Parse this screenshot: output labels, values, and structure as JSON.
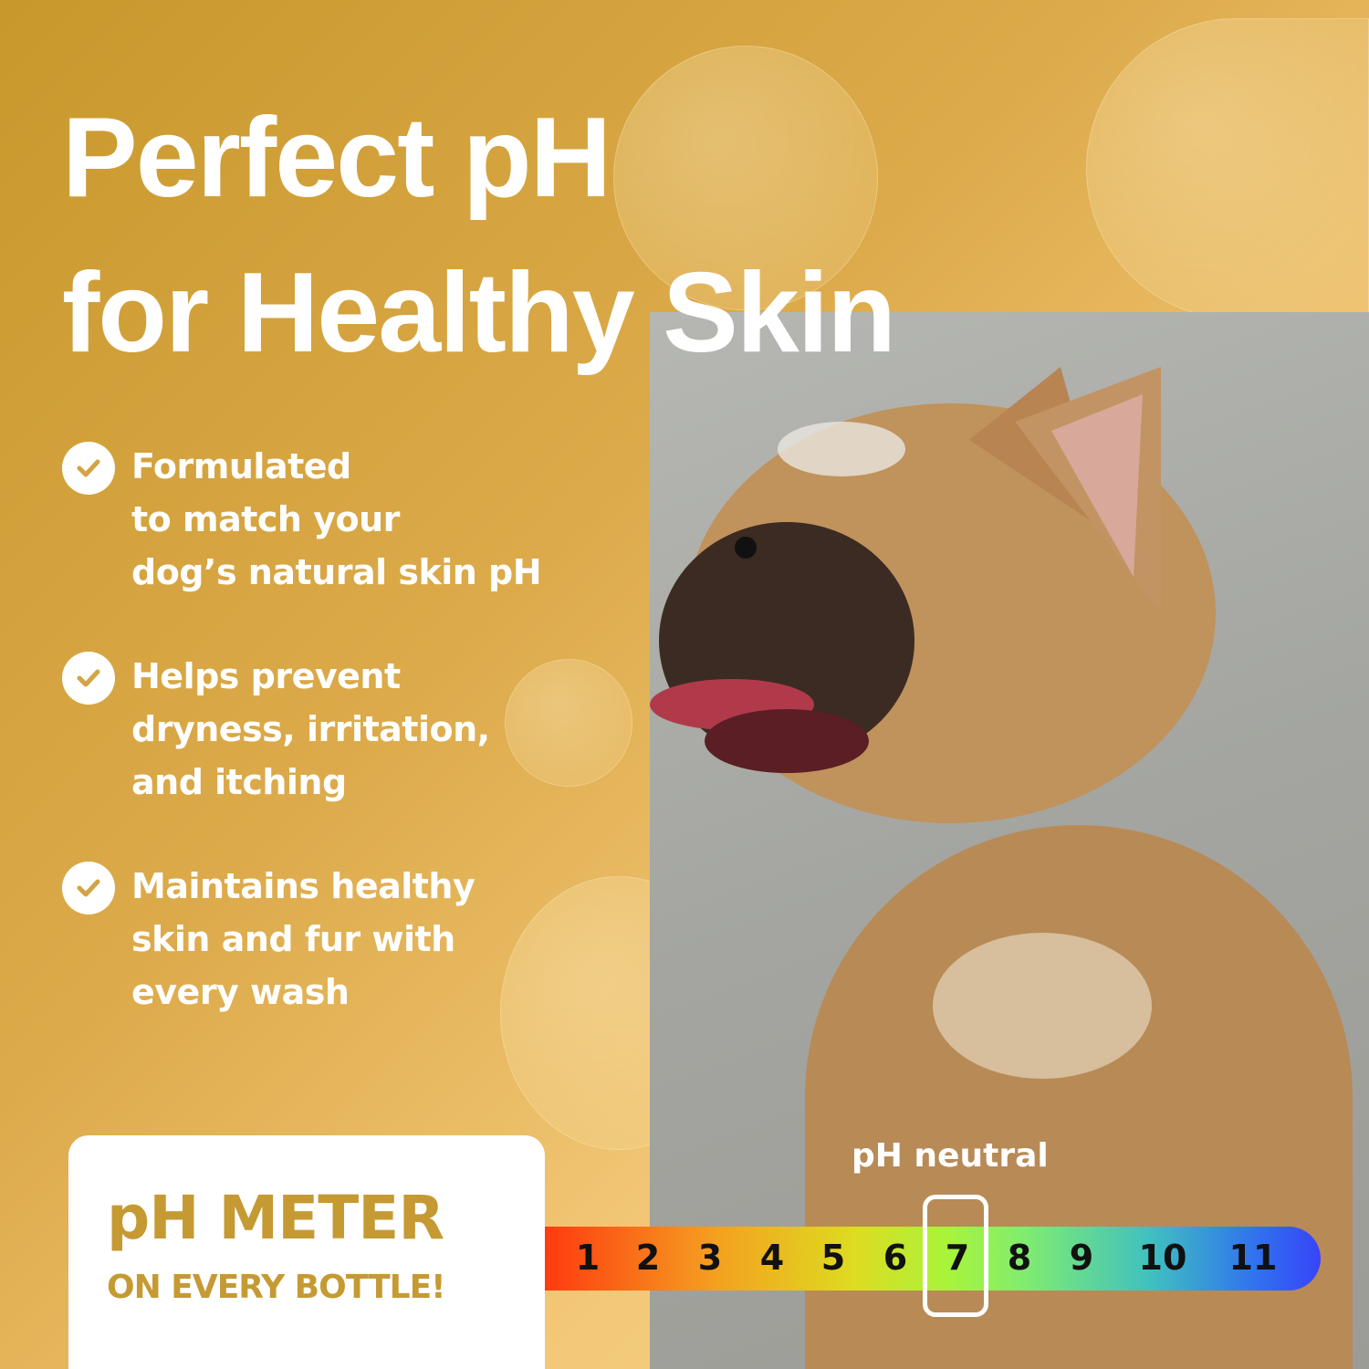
{
  "headline": {
    "line1": "Perfect pH",
    "line2": "for Healthy Skin"
  },
  "bullets": [
    {
      "icon": "check-circle-icon",
      "text": "Formulated\nto match your\ndog’s natural skin pH"
    },
    {
      "icon": "check-circle-icon",
      "text": "Helps prevent\ndryness, irritation,\nand itching"
    },
    {
      "icon": "check-circle-icon",
      "text": "Maintains healthy\nskin and fur with\nevery wash"
    }
  ],
  "meter_box": {
    "title": "pH METER",
    "subtitle": "ON EVERY BOTTLE!"
  },
  "ph_scale": {
    "label": "pH neutral",
    "values": [
      "1",
      "2",
      "3",
      "4",
      "5",
      "6",
      "7",
      "8",
      "9",
      "10",
      "11"
    ],
    "highlighted": "7"
  },
  "colors": {
    "accent": "#c59a33",
    "background_dark": "#c8982c",
    "background_light": "#f8d690"
  }
}
